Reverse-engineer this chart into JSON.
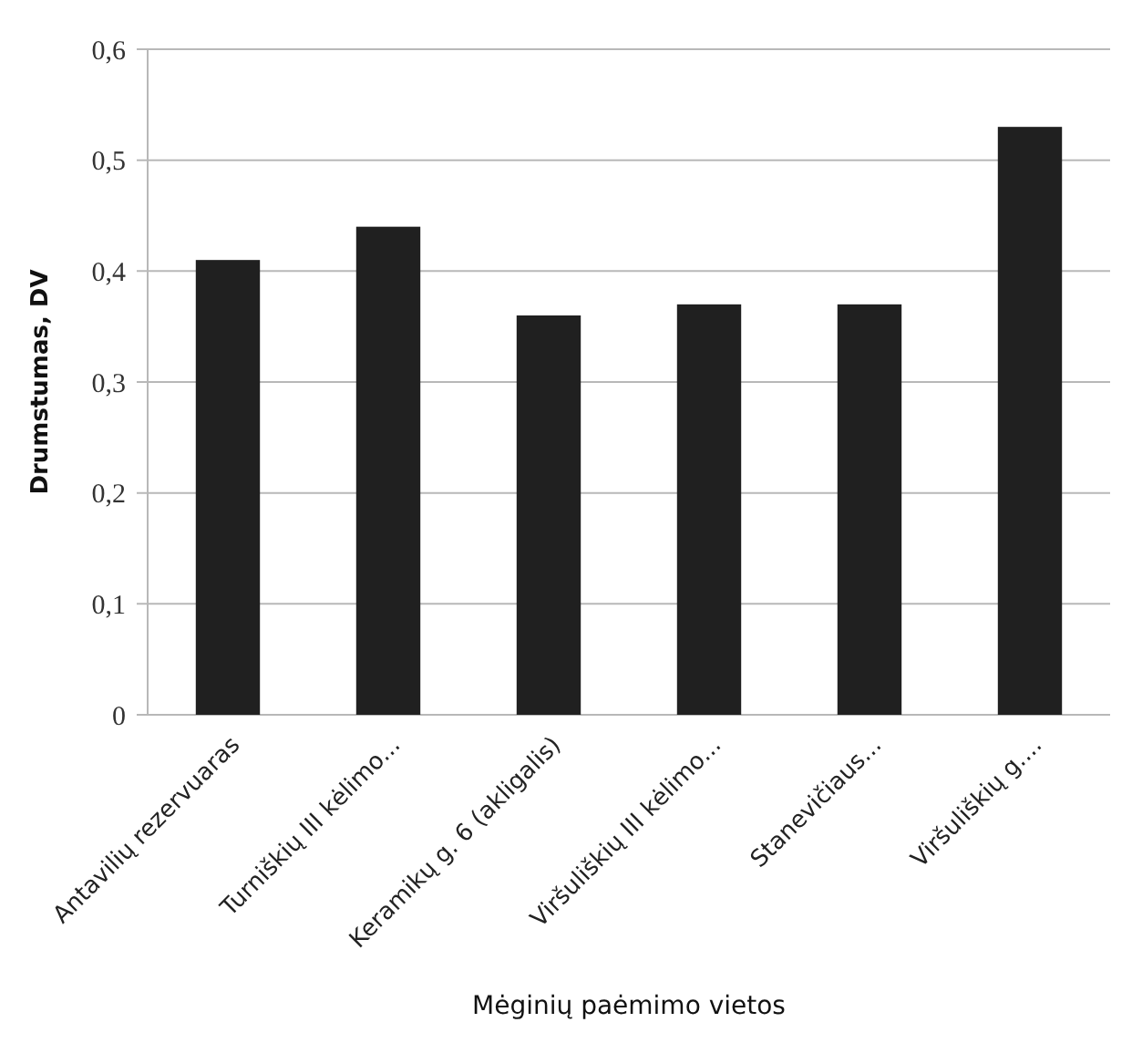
{
  "chart_data": {
    "type": "bar",
    "xlabel": "Mėginių paėmimo vietos",
    "ylabel": "Drumstumas, DV",
    "categories": [
      "Antavilių rezervuaras",
      "Turniškių III kėlimo...",
      "Keramikų g. 6 (akligalis)",
      "Viršuliškių III kėlimo...",
      "Stanevičiaus...",
      "Viršuliškių g...."
    ],
    "values": [
      0.41,
      0.44,
      0.36,
      0.37,
      0.37,
      0.53
    ],
    "color": "#202020",
    "ylim": [
      0,
      0.6
    ],
    "yticks": [
      0,
      {
        "value": 0.1,
        "label": "0,1"
      },
      {
        "value": 0.2,
        "label": "0,2"
      },
      {
        "value": 0.3,
        "label": "0,3"
      },
      {
        "value": 0.4,
        "label": "0,4"
      },
      {
        "value": 0.5,
        "label": "0,5"
      },
      {
        "value": 0.6,
        "label": "0,6"
      }
    ],
    "grid": "y"
  }
}
